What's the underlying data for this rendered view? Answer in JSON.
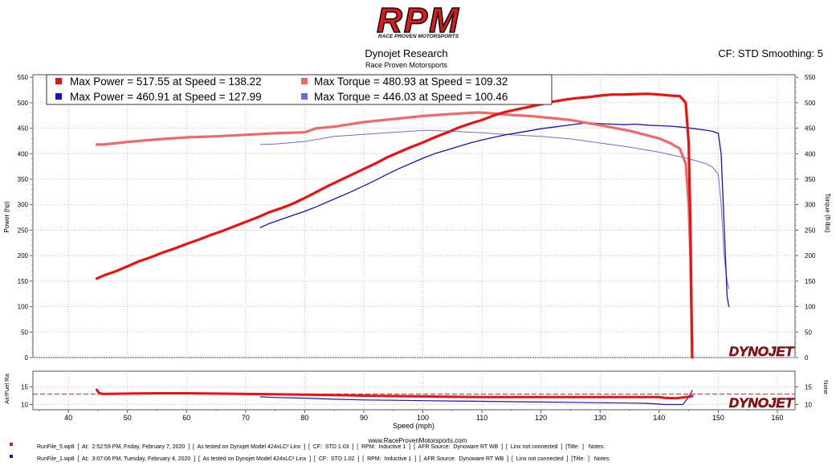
{
  "header": {
    "logo_text": "RPM",
    "logo_subtext": "RACE PROVEN MOTORSPORTS",
    "title": "Dynojet Research",
    "subtitle": "Race Proven Motorsports",
    "cf_label": "CF: STD Smoothing: 5"
  },
  "legend": {
    "items": [
      {
        "label": "Max Power = 517.55 at Speed = 138.22",
        "color": "#ee1111"
      },
      {
        "label": "Max Torque = 480.93 at Speed = 109.32",
        "color": "#f06868"
      },
      {
        "label": "Max Power = 460.91 at Speed = 127.99",
        "color": "#1111cc"
      },
      {
        "label": "Max Torque = 446.03 at Speed = 100.46",
        "color": "#6a6aee"
      }
    ]
  },
  "brand": {
    "watermark": "DYNOJET"
  },
  "footer": {
    "website": "www.RaceProvenMotorsports.com",
    "runs": [
      {
        "text": "RunFile_5.wp8  [  At:  2:52:59 PM, Friday, February 7, 2020  ]  [  As tested on Dynojet Model 424xLC² Linx  ]  [  CF:  STD 1.03  ]  [  RPM:  Inductive 1  ]  [  AFR Source:  Dynoware RT WB  ]  [  Linx not connected  ]  [Title:  ]   Notes:",
        "color": "#ee1111"
      },
      {
        "text": "RunFile_1.wp8  [  At:  3:07:06 PM, Tuesday, February 4, 2020  ]  [  As tested on Dynojet Model 424xLC² Linx  ]  [  CF:  STD 1.02  ]  [  RPM:  Inductive 1  ]  [  AFR Source:  Dynoware RT WB  ]  [  Linx not connected  ]  [Title:  ]   Notes:",
        "color": "#1111cc"
      }
    ]
  },
  "chart_data": [
    {
      "type": "line",
      "xlabel": "Speed (mph)",
      "ylabel": "Power (hp)",
      "y2label": "Torque (ft-lbs)",
      "xlim": [
        34,
        163
      ],
      "ylim": [
        0,
        555
      ],
      "x_ticks": [
        40,
        50,
        60,
        70,
        80,
        90,
        100,
        110,
        120,
        130,
        140,
        150,
        160
      ],
      "y_ticks": [
        0,
        50,
        100,
        150,
        200,
        250,
        300,
        350,
        400,
        450,
        500,
        550
      ],
      "grid": true,
      "legend_position": "top-left",
      "series": [
        {
          "name": "Power",
          "color": "#ee1111",
          "width": 3.2,
          "x": [
            44.8,
            46,
            48,
            50,
            52,
            54,
            56,
            58,
            60,
            62,
            64,
            66,
            68,
            70,
            72,
            74,
            76,
            78,
            80,
            82,
            84,
            86,
            88,
            90,
            92,
            94,
            96,
            98,
            100,
            102,
            104,
            106,
            108,
            110,
            112,
            114,
            116,
            118,
            120,
            122,
            124,
            126,
            128,
            130,
            132,
            134,
            136,
            138.22,
            140,
            142,
            143.5,
            144.5,
            145,
            145.3,
            145.5,
            145.6
          ],
          "y": [
            155,
            161,
            169,
            179,
            189,
            197,
            206,
            214,
            223,
            231,
            240,
            248,
            257,
            266,
            275,
            285,
            293,
            302,
            313,
            325,
            337,
            348,
            359,
            370,
            381,
            393,
            403,
            413,
            422,
            432,
            441,
            451,
            459,
            466,
            475,
            482,
            487,
            492,
            497,
            502,
            506,
            509,
            511,
            514,
            516,
            516,
            517,
            517.55,
            516,
            514,
            513,
            500,
            420,
            250,
            60,
            0
          ]
        },
        {
          "name": "Torque",
          "color": "#f06868",
          "width": 3.2,
          "x": [
            44.8,
            46,
            50,
            55,
            60,
            65,
            70,
            75,
            80,
            82,
            85,
            90,
            95,
            100,
            105,
            109.32,
            112,
            115,
            118,
            120,
            125,
            130,
            135,
            140,
            142,
            143.5,
            144.5,
            145,
            145.3,
            145.5,
            145.6
          ],
          "y": [
            418,
            418,
            423,
            428,
            432,
            434,
            437,
            440,
            442,
            450,
            453,
            462,
            468,
            474,
            478,
            480.93,
            479,
            476,
            474,
            472,
            466,
            456,
            445,
            430,
            420,
            410,
            380,
            300,
            200,
            60,
            0
          ]
        },
        {
          "name": "Power",
          "color": "#1111cc",
          "width": 1.3,
          "x": [
            72.5,
            74,
            76,
            78,
            80,
            82,
            84,
            86,
            88,
            90,
            92,
            94,
            96,
            98,
            100,
            102,
            104,
            106,
            108,
            110,
            112,
            114,
            116,
            118,
            120,
            122,
            124,
            126,
            127.99,
            130,
            132,
            134,
            136,
            138,
            140,
            142,
            144,
            146,
            148,
            149,
            150,
            150.5,
            151,
            151.5,
            151.8
          ],
          "y": [
            255,
            263,
            271,
            279,
            287,
            296,
            306,
            316,
            326,
            337,
            348,
            360,
            371,
            381,
            391,
            400,
            407,
            414,
            421,
            427,
            432,
            437,
            441,
            445,
            449,
            452,
            455,
            458,
            460.91,
            459,
            458,
            457,
            458,
            456,
            455,
            454,
            452,
            449,
            446,
            444,
            440,
            400,
            260,
            120,
            100
          ]
        },
        {
          "name": "Torque",
          "color": "#6a6aee",
          "width": 1.0,
          "x": [
            72.5,
            75,
            80,
            85,
            90,
            95,
            100.46,
            105,
            110,
            115,
            120,
            125,
            130,
            135,
            140,
            142,
            144,
            146,
            148,
            149,
            150,
            150.5,
            151,
            151.5,
            151.8
          ],
          "y": [
            418,
            419,
            424,
            434,
            438,
            442,
            446.03,
            444,
            441,
            437,
            434,
            429,
            421,
            413,
            403,
            398,
            393,
            387,
            380,
            374,
            360,
            300,
            200,
            150,
            135
          ]
        }
      ]
    },
    {
      "type": "line",
      "xlabel": "Speed (mph)",
      "ylabel": "Air/Fuel Ra",
      "y2label": "None",
      "xlim": [
        34,
        163
      ],
      "ylim": [
        8.5,
        19.5
      ],
      "y_ticks": [
        10,
        15
      ],
      "reference_line": 13,
      "grid": true,
      "series": [
        {
          "name": "AFR",
          "color": "#ee1111",
          "width": 3.0,
          "x": [
            44.8,
            45.2,
            46,
            50,
            55,
            60,
            65,
            70,
            75,
            80,
            85,
            90,
            95,
            100,
            105,
            110,
            115,
            120,
            125,
            130,
            135,
            140,
            141,
            142,
            143,
            144,
            145,
            145.6
          ],
          "y": [
            14.2,
            13.2,
            13.0,
            13.1,
            13.2,
            13.2,
            13.1,
            13.0,
            12.9,
            12.8,
            12.7,
            12.5,
            12.4,
            12.3,
            12.2,
            12.1,
            12.1,
            12.1,
            12.1,
            12.1,
            12.1,
            12.1,
            11.9,
            11.8,
            11.8,
            12.0,
            12.2,
            12.4
          ]
        },
        {
          "name": "AFR",
          "color": "#1111cc",
          "width": 1.2,
          "x": [
            72.5,
            75,
            80,
            85,
            90,
            95,
            100,
            105,
            110,
            115,
            120,
            125,
            130,
            135,
            138,
            140,
            141,
            142,
            143,
            144,
            145,
            145.6
          ],
          "y": [
            12.2,
            12.0,
            11.8,
            11.5,
            11.3,
            11.2,
            11.1,
            11.0,
            10.9,
            10.8,
            10.7,
            10.6,
            10.5,
            10.4,
            10.3,
            10.1,
            10.0,
            10.0,
            10.0,
            10.0,
            12.1,
            14.0
          ]
        }
      ]
    }
  ]
}
